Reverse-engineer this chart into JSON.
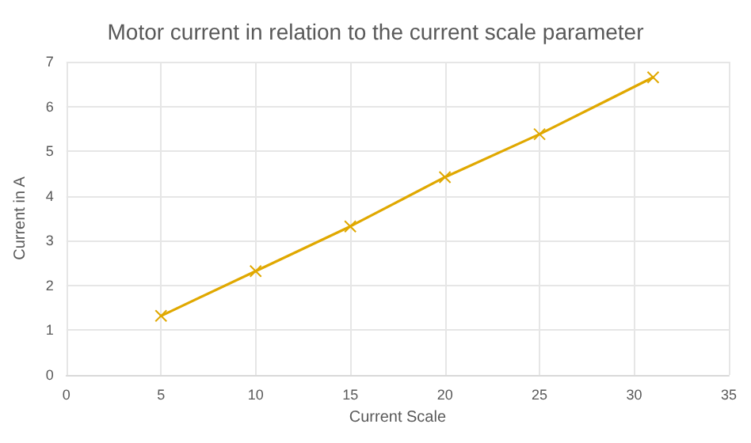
{
  "chart_data": {
    "type": "line",
    "title": "Motor current in relation to the current scale parameter",
    "xlabel": "Current Scale",
    "ylabel": "Current in A",
    "x": [
      5,
      10,
      15,
      20,
      25,
      31
    ],
    "series": [
      {
        "color": "#e0a800",
        "values": [
          1.32,
          2.32,
          3.32,
          4.42,
          5.38,
          6.65
        ]
      }
    ],
    "xlim": [
      0,
      35
    ],
    "xticks": [
      0,
      5,
      10,
      15,
      20,
      25,
      30,
      35
    ],
    "ylim": [
      0,
      7
    ],
    "yticks": [
      0,
      1,
      2,
      3,
      4,
      5,
      6,
      7
    ],
    "grid": true,
    "marker": "cross",
    "line_style": "solid"
  }
}
